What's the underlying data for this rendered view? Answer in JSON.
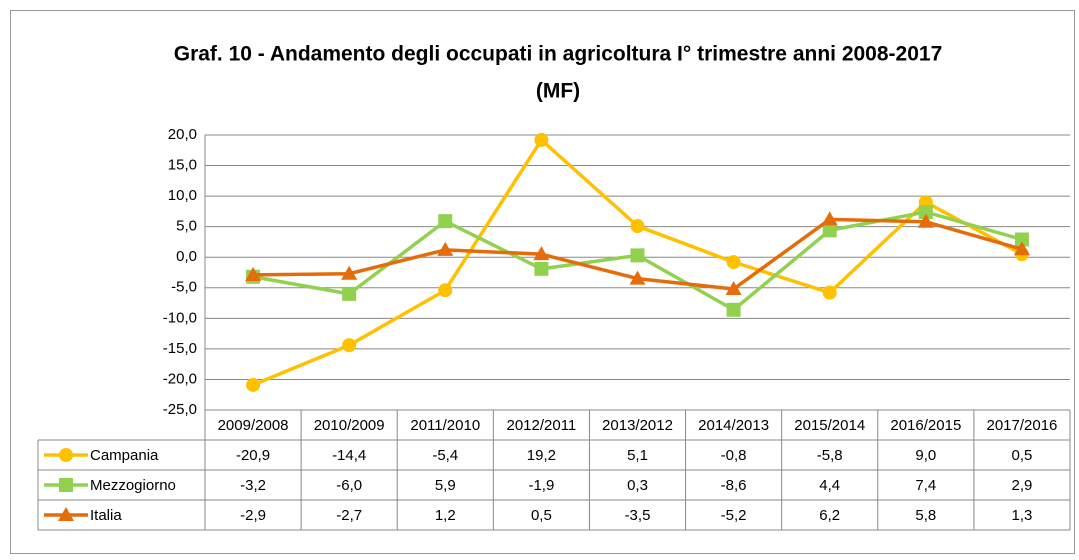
{
  "chart_data": {
    "type": "line",
    "title": [
      "Graf. 10 - Andamento degli occupati in agricoltura I° trimestre anni 2008-2017",
      "(MF)"
    ],
    "categories": [
      "2009/2008",
      "2010/2009",
      "2011/2010",
      "2012/2011",
      "2013/2012",
      "2014/2013",
      "2015/2014",
      "2016/2015",
      "2017/2016"
    ],
    "series": [
      {
        "name": "Campania",
        "color": "#FFC000",
        "marker": "circle",
        "values": [
          -20.9,
          -14.4,
          -5.4,
          19.2,
          5.1,
          -0.8,
          -5.8,
          9.0,
          0.5
        ],
        "value_labels": [
          "-20,9",
          "-14,4",
          "-5,4",
          "19,2",
          "5,1",
          "-0,8",
          "-5,8",
          "9,0",
          "0,5"
        ]
      },
      {
        "name": "Mezzogiorno",
        "color": "#92D050",
        "marker": "square",
        "values": [
          -3.2,
          -6.0,
          5.9,
          -1.9,
          0.3,
          -8.6,
          4.4,
          7.4,
          2.9
        ],
        "value_labels": [
          "-3,2",
          "-6,0",
          "5,9",
          "-1,9",
          "0,3",
          "-8,6",
          "4,4",
          "7,4",
          "2,9"
        ]
      },
      {
        "name": "Italia",
        "color": "#E46C0A",
        "marker": "triangle",
        "values": [
          -2.9,
          -2.7,
          1.2,
          0.5,
          -3.5,
          -5.2,
          6.2,
          5.8,
          1.3
        ],
        "value_labels": [
          "-2,9",
          "-2,7",
          "1,2",
          "0,5",
          "-3,5",
          "-5,2",
          "6,2",
          "5,8",
          "1,3"
        ]
      }
    ],
    "ylim": [
      -25,
      20
    ],
    "yticks": [
      {
        "value": -25,
        "label": "-25,0"
      },
      {
        "value": -20,
        "label": "-20,0"
      },
      {
        "value": -15,
        "label": "-15,0"
      },
      {
        "value": -10,
        "label": "-10,0"
      },
      {
        "value": -5,
        "label": "-5,0"
      },
      {
        "value": 0,
        "label": "0,0"
      },
      {
        "value": 5,
        "label": "5,0"
      },
      {
        "value": 10,
        "label": "10,0"
      },
      {
        "value": 15,
        "label": "15,0"
      },
      {
        "value": 20,
        "label": "20,0"
      }
    ],
    "grid": true
  }
}
